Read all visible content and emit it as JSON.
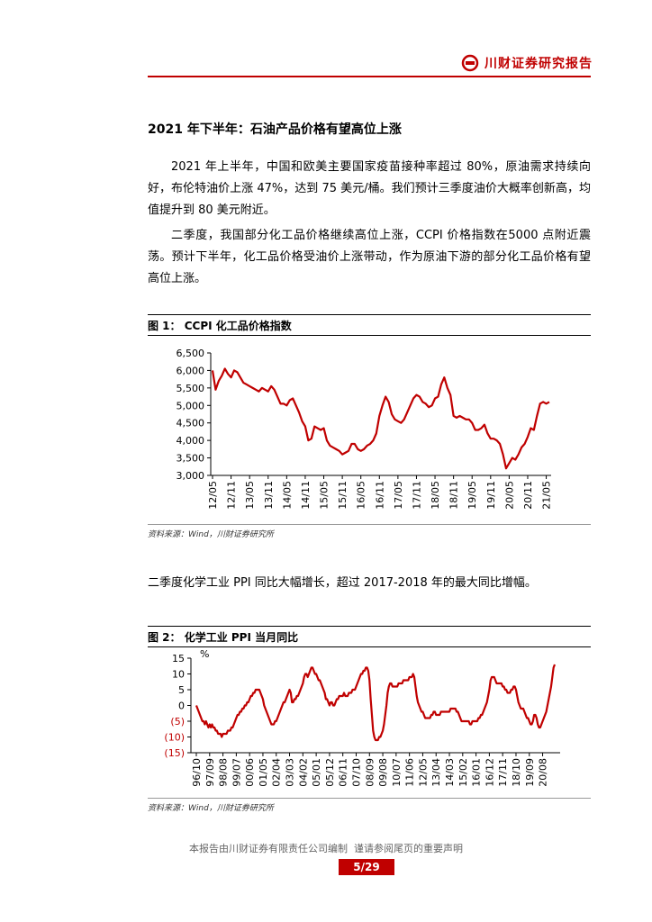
{
  "header": {
    "brand": "川财证券研究报告"
  },
  "heading": "2021 年下半年：石油产品价格有望高位上涨",
  "paragraphs": [
    "2021 年上半年，中国和欧美主要国家疫苗接种率超过 80%，原油需求持续向好，布伦特油价上涨 47%，达到 75 美元/桶。我们预计三季度油价大概率创新高，均值提升到 80 美元附近。",
    "二季度，我国部分化工品价格继续高位上涨，CCPI 价格指数在5000 点附近震荡。预计下半年，化工品价格受油价上涨带动，作为原油下游的部分化工品价格有望高位上涨。",
    "二季度化学工业 PPI 同比大幅增长，超过 2017-2018 年的最大同比增幅。"
  ],
  "chart_data": [
    {
      "type": "line",
      "title": "图 1： CCPI 化工品价格指数",
      "source": "资料来源：Wind，川财证券研究所",
      "color": "#c00000",
      "ylim": [
        3000,
        6500
      ],
      "yticks": [
        {
          "value": 3000,
          "label": "3,000"
        },
        {
          "value": 3500,
          "label": "3,500"
        },
        {
          "value": 4000,
          "label": "4,000"
        },
        {
          "value": 4500,
          "label": "4,500"
        },
        {
          "value": 5000,
          "label": "5,000"
        },
        {
          "value": 5500,
          "label": "5,500"
        },
        {
          "value": 6000,
          "label": "6,000"
        },
        {
          "value": 6500,
          "label": "6,500"
        }
      ],
      "categories": [
        "12/05",
        null,
        null,
        null,
        null,
        null,
        "12/11",
        null,
        null,
        null,
        null,
        null,
        "13/05",
        null,
        null,
        null,
        null,
        null,
        "13/11",
        null,
        null,
        null,
        null,
        null,
        "14/05",
        null,
        null,
        null,
        null,
        null,
        "14/11",
        null,
        null,
        null,
        null,
        null,
        "15/05",
        null,
        null,
        null,
        null,
        null,
        "15/11",
        null,
        null,
        null,
        null,
        null,
        "16/05",
        null,
        null,
        null,
        null,
        null,
        "16/11",
        null,
        null,
        null,
        null,
        null,
        "17/05",
        null,
        null,
        null,
        null,
        null,
        "17/11",
        null,
        null,
        null,
        null,
        null,
        "18/05",
        null,
        null,
        null,
        null,
        null,
        "18/11",
        null,
        null,
        null,
        null,
        null,
        "19/05",
        null,
        null,
        null,
        null,
        null,
        "19/11",
        null,
        null,
        null,
        null,
        null,
        "20/05",
        null,
        null,
        null,
        null,
        null,
        "20/11",
        null,
        null,
        null,
        null,
        null,
        "21/05",
        null
      ],
      "values": [
        6000,
        5450,
        5700,
        5850,
        6050,
        5900,
        5800,
        6000,
        5950,
        5800,
        5650,
        5600,
        5550,
        5500,
        5450,
        5400,
        5500,
        5450,
        5400,
        5550,
        5450,
        5250,
        5050,
        5050,
        5000,
        5150,
        5200,
        5000,
        4800,
        4550,
        4400,
        4000,
        4050,
        4400,
        4350,
        4300,
        4350,
        4000,
        3850,
        3800,
        3750,
        3700,
        3600,
        3650,
        3700,
        3900,
        3900,
        3750,
        3700,
        3750,
        3850,
        3900,
        4000,
        4200,
        4700,
        5000,
        5250,
        5100,
        4750,
        4600,
        4550,
        4500,
        4600,
        4800,
        5000,
        5200,
        5300,
        5250,
        5100,
        5050,
        4950,
        5000,
        5200,
        5250,
        5600,
        5800,
        5500,
        5300,
        4700,
        4650,
        4700,
        4650,
        4600,
        4600,
        4500,
        4300,
        4300,
        4350,
        4450,
        4200,
        4050,
        4050,
        4000,
        3900,
        3600,
        3200,
        3350,
        3500,
        3450,
        3600,
        3800,
        3900,
        4100,
        4350,
        4300,
        4700,
        5050,
        5100,
        5050,
        5100
      ]
    },
    {
      "type": "line",
      "title": "图 2： 化学工业 PPI 当月同比",
      "source": "资料来源：Wind，川财证券研究所",
      "color": "#c00000",
      "unit": "%",
      "negative_tick_color": "#c00000",
      "ylim": [
        -15,
        15
      ],
      "yticks": [
        {
          "value": -15,
          "label": "(15)"
        },
        {
          "value": -10,
          "label": "(10)"
        },
        {
          "value": -5,
          "label": "(5)"
        },
        0,
        5,
        10,
        15
      ],
      "categories": [
        "96/10",
        null,
        null,
        null,
        null,
        null,
        null,
        null,
        null,
        null,
        null,
        "97/09",
        null,
        null,
        null,
        null,
        null,
        null,
        null,
        null,
        null,
        null,
        "98/08",
        null,
        null,
        null,
        null,
        null,
        null,
        null,
        null,
        null,
        null,
        "99/07",
        null,
        null,
        null,
        null,
        null,
        null,
        null,
        null,
        null,
        null,
        "00/06",
        null,
        null,
        null,
        null,
        null,
        null,
        null,
        null,
        null,
        null,
        "01/05",
        null,
        null,
        null,
        null,
        null,
        null,
        null,
        null,
        null,
        null,
        "02/04",
        null,
        null,
        null,
        null,
        null,
        null,
        null,
        null,
        null,
        null,
        "03/03",
        null,
        null,
        null,
        null,
        null,
        null,
        null,
        null,
        null,
        null,
        "04/02",
        null,
        null,
        null,
        null,
        null,
        null,
        null,
        null,
        null,
        null,
        "05/01",
        null,
        null,
        null,
        null,
        null,
        null,
        null,
        null,
        null,
        null,
        "05/12",
        null,
        null,
        null,
        null,
        null,
        null,
        null,
        null,
        null,
        null,
        "06/11",
        null,
        null,
        null,
        null,
        null,
        null,
        null,
        null,
        null,
        null,
        "07/10",
        null,
        null,
        null,
        null,
        null,
        null,
        null,
        null,
        null,
        null,
        "08/09",
        null,
        null,
        null,
        null,
        null,
        null,
        null,
        null,
        null,
        null,
        "09/08",
        null,
        null,
        null,
        null,
        null,
        null,
        null,
        null,
        null,
        null,
        "10/07",
        null,
        null,
        null,
        null,
        null,
        null,
        null,
        null,
        null,
        null,
        "11/06",
        null,
        null,
        null,
        null,
        null,
        null,
        null,
        null,
        null,
        null,
        "12/05",
        null,
        null,
        null,
        null,
        null,
        null,
        null,
        null,
        null,
        null,
        "13/04",
        null,
        null,
        null,
        null,
        null,
        null,
        null,
        null,
        null,
        null,
        "14/03",
        null,
        null,
        null,
        null,
        null,
        null,
        null,
        null,
        null,
        null,
        "15/02",
        null,
        null,
        null,
        null,
        null,
        null,
        null,
        null,
        null,
        null,
        "16/01",
        null,
        null,
        null,
        null,
        null,
        null,
        null,
        null,
        null,
        null,
        "16/12",
        null,
        null,
        null,
        null,
        null,
        null,
        null,
        null,
        null,
        null,
        "17/11",
        null,
        null,
        null,
        null,
        null,
        null,
        null,
        null,
        null,
        null,
        "18/10",
        null,
        null,
        null,
        null,
        null,
        null,
        null,
        null,
        null,
        null,
        "19/09",
        null,
        null,
        null,
        null,
        null,
        null,
        null,
        null,
        null,
        null,
        "20/08",
        null,
        null,
        null,
        null,
        null,
        null,
        null,
        null,
        null,
        null
      ],
      "values": [
        0,
        -1,
        -2,
        -3,
        -4,
        -5,
        -5,
        -6,
        -5,
        -6,
        -7,
        -6,
        -7,
        -6,
        -7,
        -7,
        -8,
        -8,
        -9,
        -9,
        -9,
        -10,
        -9,
        -9,
        -9,
        -9,
        -8,
        -8,
        -8,
        -7,
        -7,
        -6,
        -5,
        -4,
        -3,
        -3,
        -2,
        -2,
        -1,
        -1,
        0,
        0,
        1,
        1,
        2,
        3,
        3,
        4,
        4,
        5,
        5,
        5,
        5,
        4,
        3,
        2,
        0,
        -1,
        -2,
        -3,
        -4,
        -5,
        -6,
        -6,
        -6,
        -5,
        -5,
        -4,
        -3,
        -2,
        -1,
        0,
        1,
        1,
        2,
        3,
        4,
        5,
        4,
        1,
        1,
        2,
        2,
        3,
        3,
        4,
        5,
        6,
        7,
        9,
        10,
        10,
        9,
        10,
        11,
        12,
        12,
        11,
        10,
        10,
        9,
        8,
        8,
        7,
        6,
        5,
        4,
        2,
        2,
        1,
        0,
        1,
        1,
        0,
        0,
        1,
        2,
        2,
        3,
        3,
        3,
        3,
        4,
        3,
        3,
        3,
        4,
        4,
        4,
        5,
        5,
        5,
        6,
        7,
        8,
        9,
        10,
        10,
        11,
        11,
        12,
        12,
        11,
        8,
        2,
        -3,
        -8,
        -10,
        -11,
        -11,
        -11,
        -10,
        -10,
        -9,
        -8,
        -6,
        -3,
        0,
        4,
        6,
        7,
        7,
        6,
        6,
        6,
        6,
        6,
        7,
        7,
        7,
        7,
        8,
        8,
        8,
        8,
        8,
        9,
        9,
        9,
        10,
        9,
        6,
        3,
        1,
        0,
        -1,
        -2,
        -2,
        -3,
        -4,
        -4,
        -4,
        -4,
        -4,
        -3,
        -3,
        -2,
        -2,
        -3,
        -3,
        -3,
        -3,
        -2,
        -2,
        -2,
        -2,
        -2,
        -2,
        -2,
        -2,
        -1,
        -1,
        -1,
        -1,
        -1,
        -2,
        -2,
        -3,
        -4,
        -5,
        -5,
        -5,
        -5,
        -5,
        -5,
        -5,
        -6,
        -6,
        -5,
        -5,
        -5,
        -5,
        -5,
        -4,
        -4,
        -3,
        -3,
        -2,
        -1,
        0,
        1,
        3,
        5,
        8,
        9,
        9,
        9,
        8,
        7,
        7,
        7,
        7,
        7,
        6,
        6,
        5,
        5,
        4,
        4,
        4,
        5,
        5,
        6,
        6,
        5,
        3,
        1,
        0,
        -1,
        -1,
        -1,
        -2,
        -3,
        -4,
        -4,
        -5,
        -6,
        -6,
        -5,
        -3,
        -3,
        -4,
        -6,
        -7,
        -7,
        -6,
        -5,
        -4,
        -3,
        -2,
        0,
        2,
        4,
        6,
        9,
        12,
        13
      ]
    }
  ],
  "footer": {
    "disclaimer": "本报告由川财证券有限责任公司编制  谨请参阅尾页的重要声明",
    "page": "5/29"
  }
}
